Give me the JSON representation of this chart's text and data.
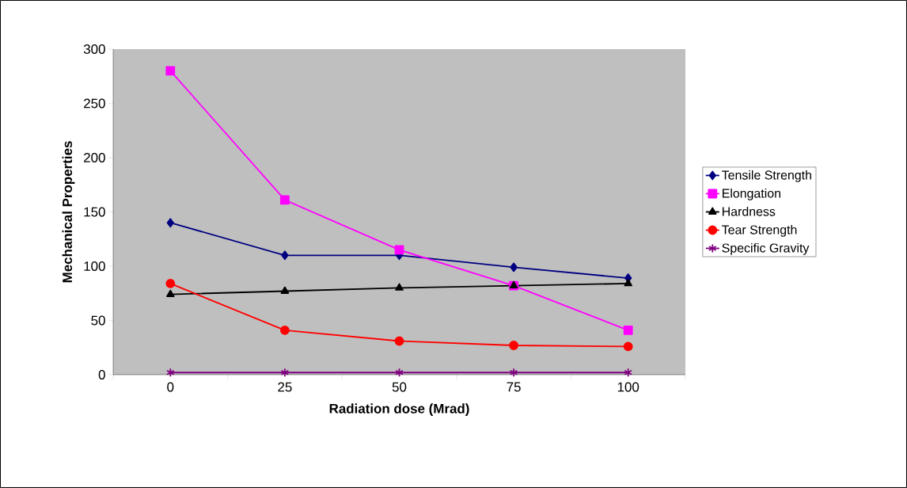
{
  "chart_data": {
    "type": "line",
    "xlabel": "Radiation dose (Mrad)",
    "ylabel": "Mechanical Properties",
    "categories": [
      "0",
      "25",
      "50",
      "75",
      "100"
    ],
    "series": [
      {
        "name": "Tensile Strength",
        "color": "#000080",
        "marker": "diamond",
        "values": [
          140,
          110,
          110,
          99,
          89
        ]
      },
      {
        "name": "Elongation",
        "color": "#ff00ff",
        "marker": "square",
        "values": [
          280,
          161,
          115,
          82,
          41
        ]
      },
      {
        "name": "Hardness",
        "color": "#000000",
        "marker": "triangle",
        "values": [
          74,
          77,
          80,
          82,
          84
        ]
      },
      {
        "name": "Tear Strength",
        "color": "#ff0000",
        "marker": "circle",
        "values": [
          84,
          41,
          31,
          27,
          26
        ]
      },
      {
        "name": "Specific Gravity",
        "color": "#800080",
        "marker": "cross",
        "values": [
          2,
          2,
          2,
          2,
          2
        ]
      }
    ],
    "ylim": [
      0,
      300
    ],
    "yticks": [
      0,
      50,
      100,
      150,
      200,
      250,
      300
    ],
    "grid": false,
    "legend": "right",
    "line_style": "solid"
  }
}
